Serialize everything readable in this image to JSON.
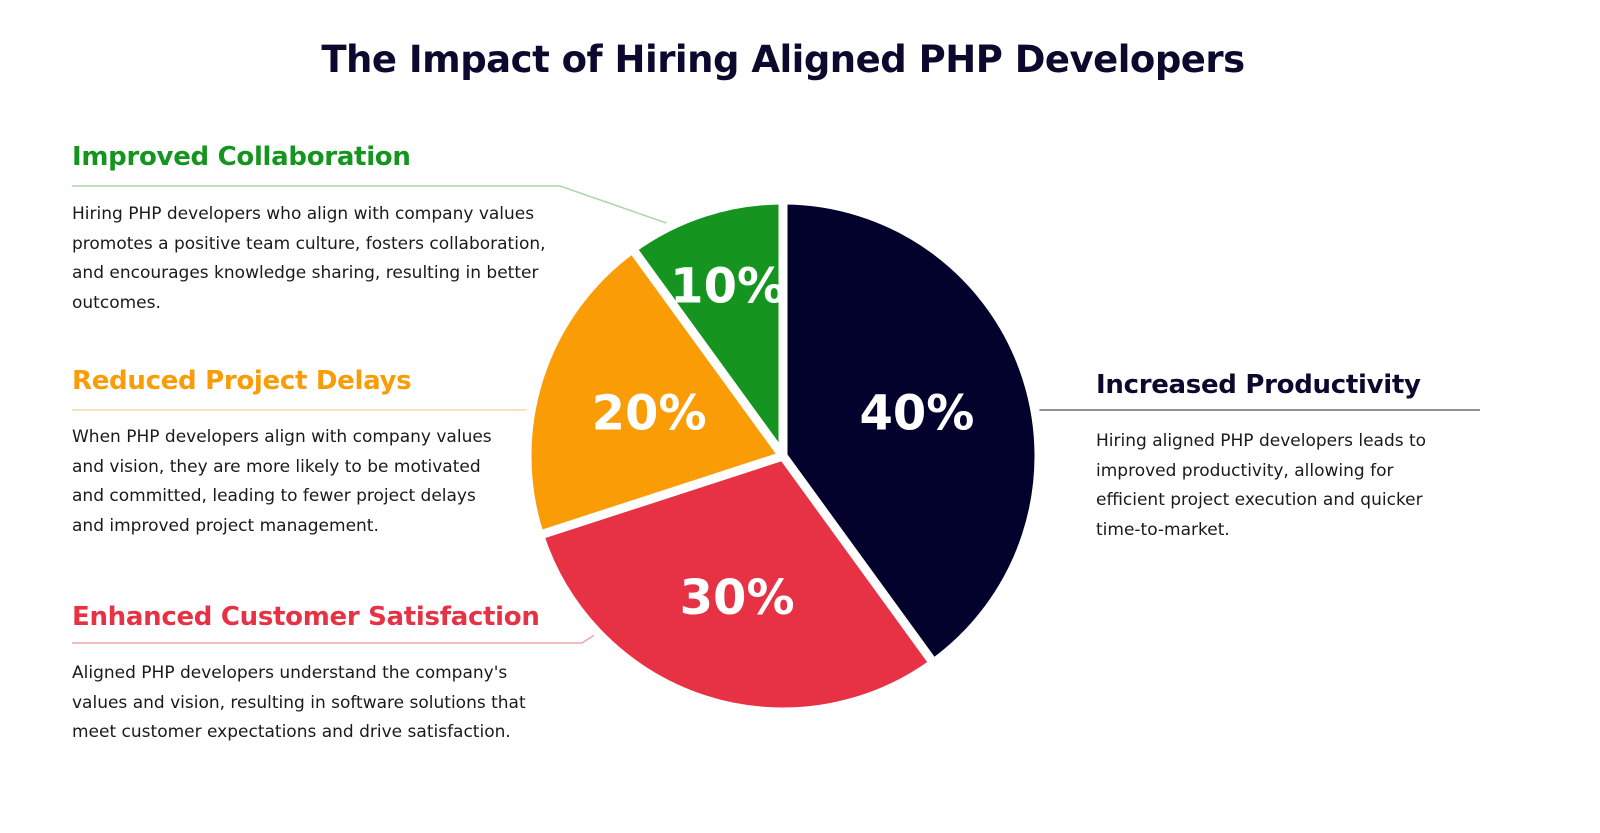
{
  "title": "The Impact of Hiring Aligned PHP Developers",
  "chart_data": {
    "type": "pie",
    "title": "The Impact of Hiring Aligned PHP Developers",
    "start": "top, clockwise",
    "slices": [
      {
        "label": "Increased Productivity",
        "value": 40,
        "display": "40%",
        "color": "#02022d"
      },
      {
        "label": "Enhanced Customer Satisfaction",
        "value": 30,
        "display": "30%",
        "color": "#e63244"
      },
      {
        "label": "Reduced Project Delays",
        "value": 20,
        "display": "20%",
        "color": "#f99c05"
      },
      {
        "label": "Improved Collaboration",
        "value": 10,
        "display": "10%",
        "color": "#15951f"
      }
    ]
  },
  "sections": {
    "collaboration": {
      "heading": "Improved Collaboration",
      "text": [
        "Hiring PHP developers who align with company values",
        "promotes a positive team culture, fosters collaboration,",
        "and encourages knowledge sharing, resulting in better",
        "outcomes."
      ]
    },
    "delays": {
      "heading": "Reduced Project Delays",
      "text": [
        "When PHP developers align with company values",
        "and vision, they are more likely to be motivated",
        "and committed, leading to fewer project delays",
        "and improved project management."
      ]
    },
    "satisfaction": {
      "heading": "Enhanced Customer Satisfaction",
      "text": [
        "Aligned PHP developers understand the company's",
        "values and vision, resulting in software solutions that",
        "meet customer expectations and drive satisfaction."
      ]
    },
    "productivity": {
      "heading": "Increased Productivity",
      "text": [
        "Hiring aligned PHP developers leads to",
        "improved productivity, allowing for",
        "efficient project execution and quicker",
        "time-to-market."
      ]
    }
  }
}
